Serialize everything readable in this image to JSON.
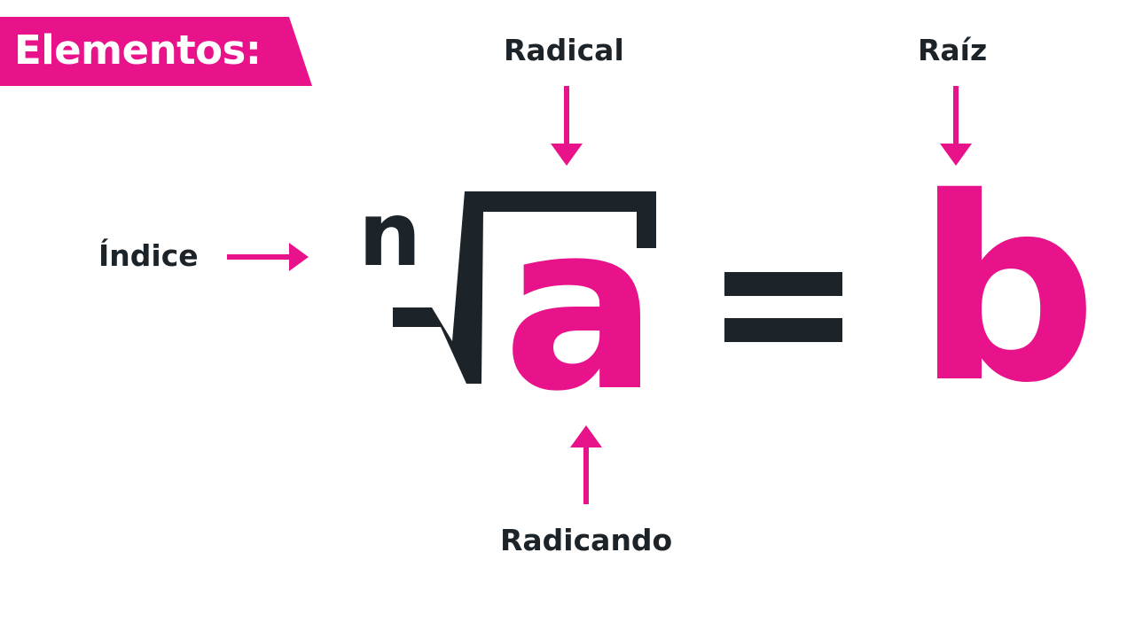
{
  "header": {
    "title": "Elementos:"
  },
  "labels": {
    "radical": "Radical",
    "raiz": "Raíz",
    "indice": "Índice",
    "radicando": "Radicando"
  },
  "formula": {
    "index": "n",
    "radicand": "a",
    "root": "b"
  },
  "colors": {
    "accent": "#e8138a",
    "dark": "#1c242a"
  },
  "icons": [
    "arrow-down-icon",
    "arrow-right-icon",
    "arrow-up-icon",
    "radical-sign-icon",
    "equals-sign-icon"
  ]
}
